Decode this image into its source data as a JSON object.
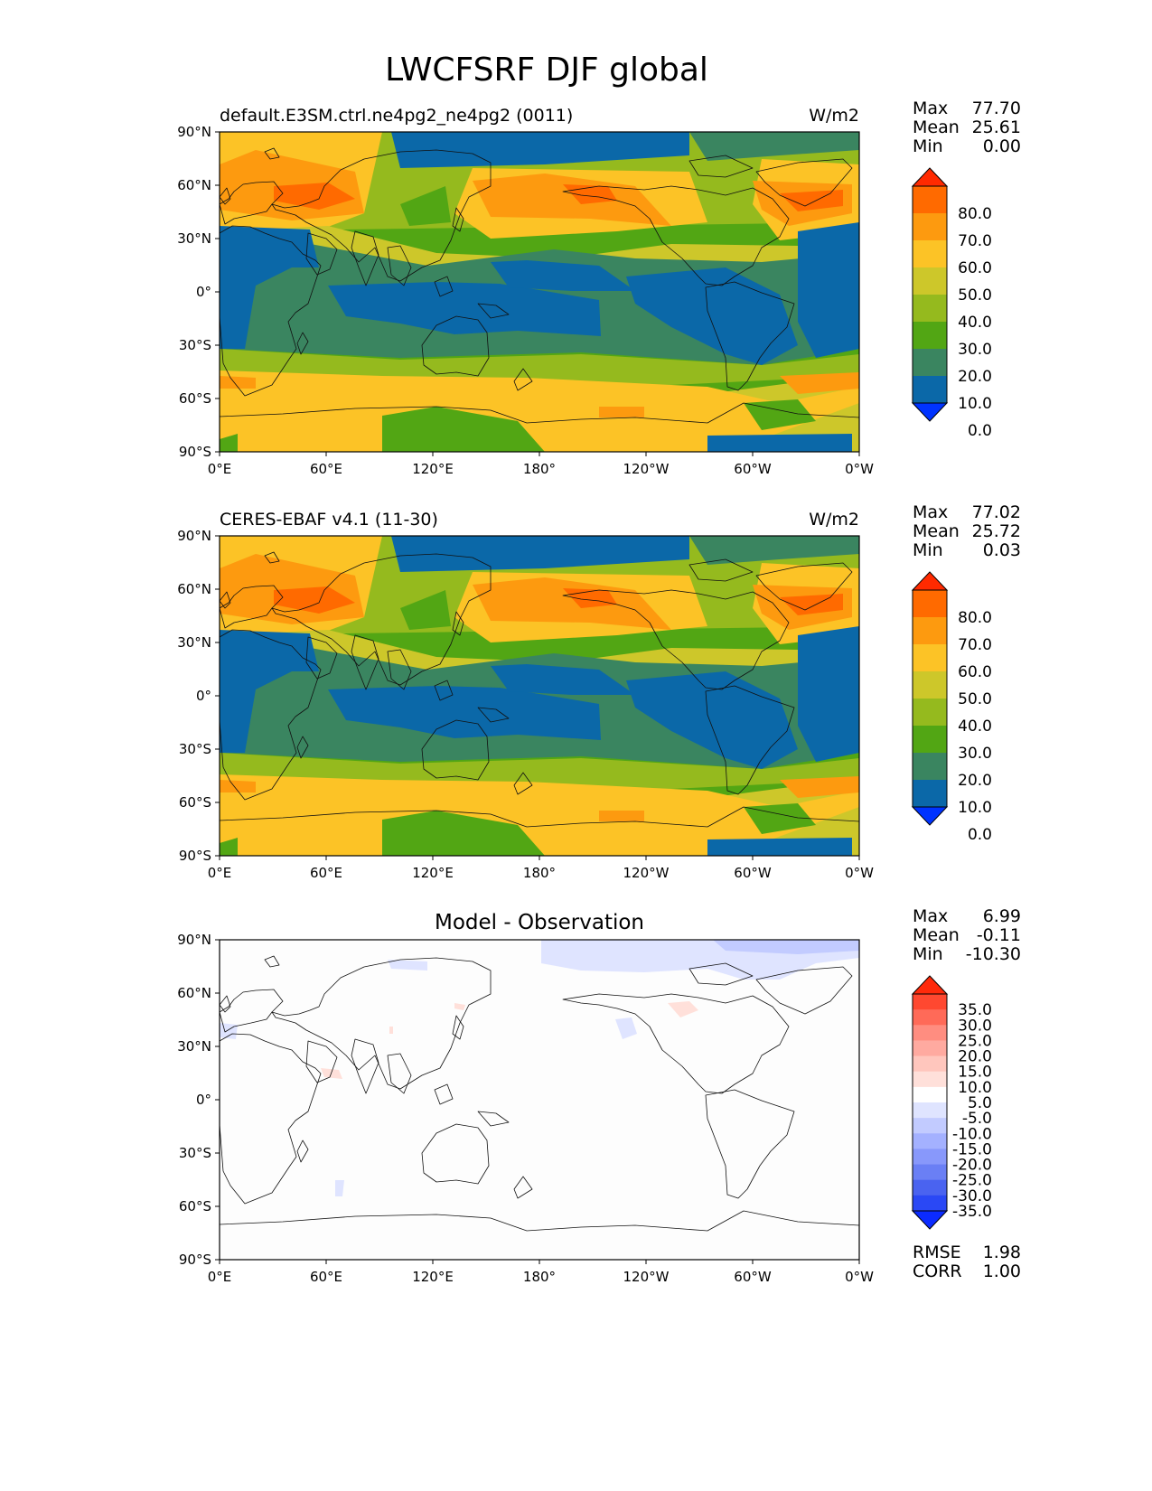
{
  "figure": {
    "title": "LWCFSRF DJF global"
  },
  "panels": [
    {
      "id": "test",
      "title_left": "default.E3SM.ctrl.ne4pg2_ne4pg2 (0011)",
      "title_center": "",
      "units": "W/m2",
      "stats": [
        {
          "label": "Max",
          "value": "77.70"
        },
        {
          "label": "Mean",
          "value": "25.61"
        },
        {
          "label": "Min",
          "value": "0.00"
        }
      ],
      "colorbar_labels": [
        "80.0",
        "70.0",
        "60.0",
        "50.0",
        "40.0",
        "30.0",
        "20.0",
        "10.0",
        "0.0"
      ],
      "colorbar_colors": [
        "#ff2a00",
        "#ff6a00",
        "#fd9a0f",
        "#fcc326",
        "#cdc72a",
        "#95ba1e",
        "#52a614",
        "#3a8560",
        "#0b68a8",
        "#0033ff"
      ],
      "bottom_stats": []
    },
    {
      "id": "reference",
      "title_left": "CERES-EBAF v4.1 (11-30)",
      "title_center": "",
      "units": "W/m2",
      "stats": [
        {
          "label": "Max",
          "value": "77.02"
        },
        {
          "label": "Mean",
          "value": "25.72"
        },
        {
          "label": "Min",
          "value": "0.03"
        }
      ],
      "colorbar_labels": [
        "80.0",
        "70.0",
        "60.0",
        "50.0",
        "40.0",
        "30.0",
        "20.0",
        "10.0",
        "0.0"
      ],
      "colorbar_colors": [
        "#ff2a00",
        "#ff6a00",
        "#fd9a0f",
        "#fcc326",
        "#cdc72a",
        "#95ba1e",
        "#52a614",
        "#3a8560",
        "#0b68a8",
        "#0033ff"
      ],
      "bottom_stats": []
    },
    {
      "id": "difference",
      "title_left": "",
      "title_center": "Model - Observation",
      "units": "",
      "stats": [
        {
          "label": "Max",
          "value": "6.99"
        },
        {
          "label": "Mean",
          "value": "-0.11"
        },
        {
          "label": "Min",
          "value": "-10.30"
        }
      ],
      "colorbar_labels": [
        "35.0",
        "30.0",
        "25.0",
        "20.0",
        "15.0",
        "10.0",
        "5.0",
        "-5.0",
        "-10.0",
        "-15.0",
        "-20.0",
        "-25.0",
        "-30.0",
        "-35.0"
      ],
      "colorbar_colors": [
        "#ff2a0b",
        "#ff4830",
        "#ff6a58",
        "#ff8d80",
        "#ffaaa0",
        "#ffc6bd",
        "#ffe0da",
        "#ffffff",
        "#dfe4ff",
        "#c2cbff",
        "#a4b1ff",
        "#8898fb",
        "#6a7ff5",
        "#4a63f0",
        "#2a48f5",
        "#0b2bff"
      ],
      "bottom_stats": [
        {
          "label": "RMSE",
          "value": "1.98"
        },
        {
          "label": "CORR",
          "value": "1.00"
        }
      ]
    }
  ],
  "axes": {
    "lat_ticks": [
      "90°N",
      "60°N",
      "30°N",
      "0°",
      "30°S",
      "60°S",
      "90°S"
    ],
    "lon_ticks": [
      "0°E",
      "60°E",
      "120°E",
      "180°",
      "120°W",
      "60°W",
      "0°W"
    ]
  }
}
